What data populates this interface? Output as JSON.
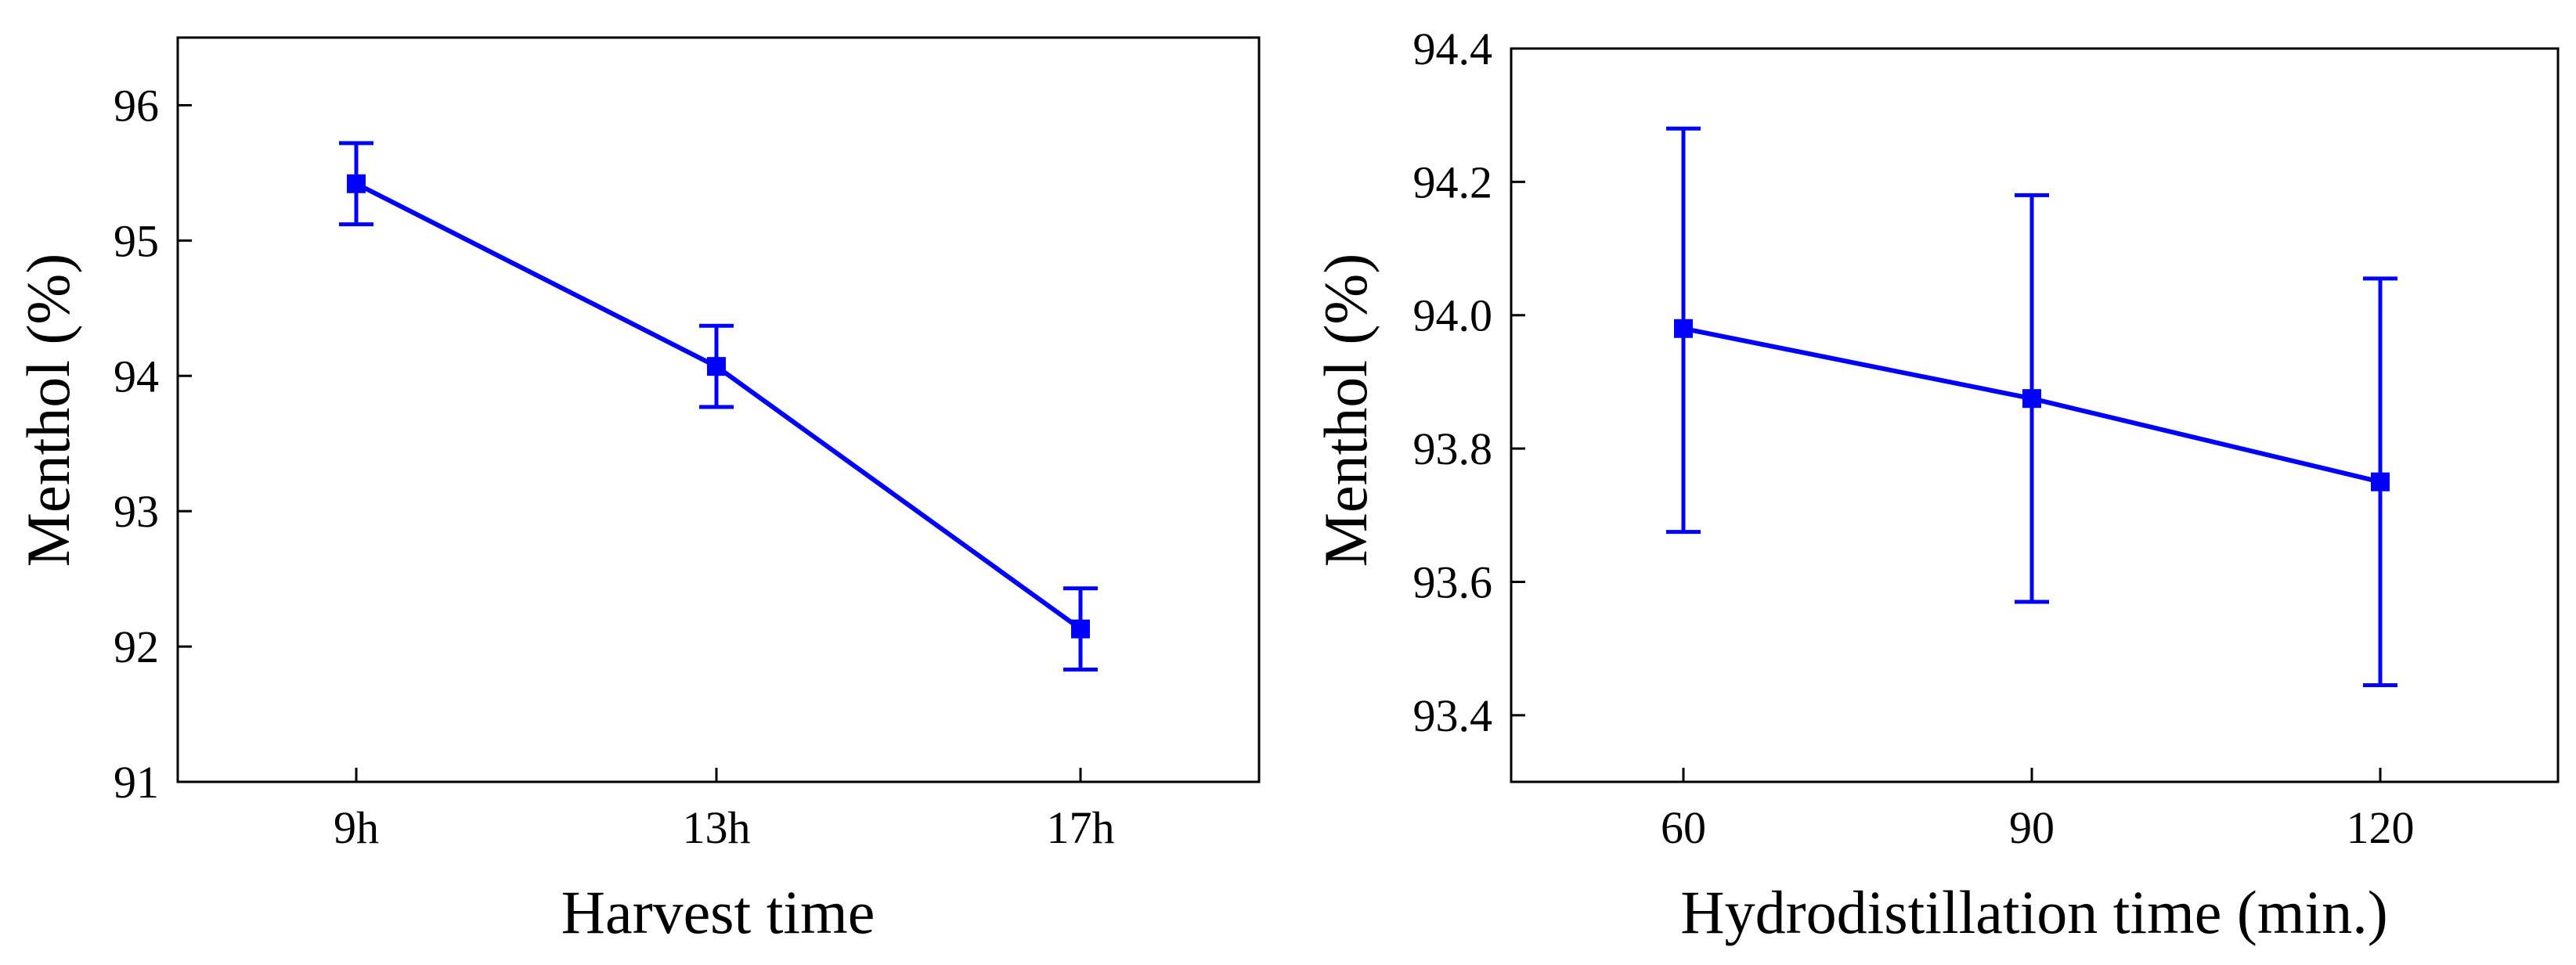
{
  "series_color": "#0000ff",
  "chart_data": [
    {
      "type": "line",
      "title": "",
      "xlabel": "Harvest time",
      "ylabel": "Menthol (%)",
      "categories": [
        "9h",
        "13h",
        "17h"
      ],
      "values": [
        95.42,
        94.07,
        92.13
      ],
      "error_low": [
        95.12,
        93.77,
        91.83
      ],
      "error_high": [
        95.72,
        94.37,
        92.43
      ],
      "ylim": [
        91,
        96.5
      ],
      "yticks": [
        91,
        92,
        93,
        94,
        95,
        96
      ],
      "ytick_labels": [
        "91",
        "92",
        "93",
        "94",
        "95",
        "96"
      ],
      "grid": false,
      "marker": "square-icon"
    },
    {
      "type": "line",
      "title": "",
      "xlabel": "Hydrodistillation time (min.)",
      "ylabel": "Menthol (%)",
      "categories": [
        "60",
        "90",
        "120"
      ],
      "values": [
        93.98,
        93.875,
        93.75
      ],
      "error_low": [
        93.675,
        93.57,
        93.445
      ],
      "error_high": [
        94.28,
        94.18,
        94.055
      ],
      "ylim": [
        93.3,
        94.4
      ],
      "yticks": [
        93.4,
        93.6,
        93.8,
        94.0,
        94.2,
        94.4
      ],
      "ytick_labels": [
        "93.4",
        "93.6",
        "93.8",
        "94.0",
        "94.2",
        "94.4"
      ],
      "grid": false,
      "marker": "square-icon"
    }
  ]
}
